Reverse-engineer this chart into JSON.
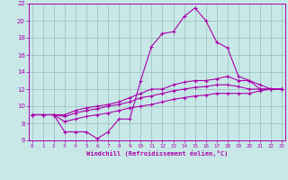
{
  "xlabel": "Windchill (Refroidissement éolien,°C)",
  "bg_color": "#c8e8e8",
  "line_color": "#aa00aa",
  "grid_color": "#99bbbb",
  "xmin": 0,
  "xmax": 23,
  "ymin": 6,
  "ymax": 22,
  "yticks": [
    6,
    8,
    10,
    12,
    14,
    16,
    18,
    20,
    22
  ],
  "xticks": [
    0,
    1,
    2,
    3,
    4,
    5,
    6,
    7,
    8,
    9,
    10,
    11,
    12,
    13,
    14,
    15,
    16,
    17,
    18,
    19,
    20,
    21,
    22,
    23
  ],
  "series": {
    "main": [
      9,
      9,
      9,
      7,
      7,
      7,
      6.2,
      7,
      8.5,
      8.5,
      13,
      17,
      18.5,
      18.7,
      20.5,
      21.5,
      20,
      17.5,
      16.8,
      13.5,
      13,
      12,
      12,
      12
    ],
    "upper": [
      9,
      9,
      9,
      9,
      9.5,
      9.8,
      10,
      10.2,
      10.5,
      11,
      11.5,
      12,
      12,
      12.5,
      12.8,
      13,
      13,
      13.2,
      13.5,
      13,
      13,
      12.5,
      12,
      12
    ],
    "mid": [
      9,
      9,
      9,
      8.8,
      9.2,
      9.5,
      9.7,
      10,
      10.2,
      10.5,
      11,
      11.2,
      11.5,
      11.8,
      12,
      12.2,
      12.3,
      12.5,
      12.5,
      12.3,
      12,
      12,
      12,
      12
    ],
    "lower": [
      9,
      9,
      9,
      8.2,
      8.5,
      8.8,
      9,
      9.2,
      9.5,
      9.8,
      10,
      10.2,
      10.5,
      10.8,
      11,
      11.2,
      11.3,
      11.5,
      11.5,
      11.5,
      11.5,
      11.8,
      12,
      12
    ]
  }
}
